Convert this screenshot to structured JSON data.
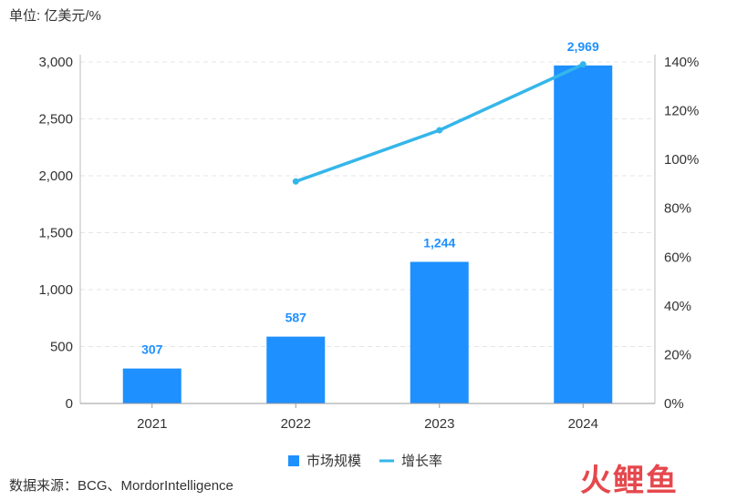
{
  "unit_label": "单位: 亿美元/%",
  "source_label": "数据来源：BCG、MordorIntelligence",
  "watermark": "火鲤鱼",
  "colors": {
    "bar": "#1e90ff",
    "line": "#35b6ea",
    "grid": "#e6e6e6",
    "label": "#1e90ff"
  },
  "chart_data": {
    "type": "bar",
    "categories": [
      "2021",
      "2022",
      "2023",
      "2024"
    ],
    "series": [
      {
        "name": "市场规模",
        "type": "bar",
        "axis": "left",
        "values": [
          307,
          587,
          1244,
          2969
        ],
        "labels": [
          "307",
          "587",
          "1,244",
          "2,969"
        ]
      },
      {
        "name": "增长率",
        "type": "line",
        "axis": "right",
        "values": [
          null,
          91,
          112,
          139
        ]
      }
    ],
    "ylim": [
      0,
      3000
    ],
    "y_ticks": [
      0,
      500,
      1000,
      1500,
      2000,
      2500,
      3000
    ],
    "y_tick_labels": [
      "0",
      "500",
      "1,000",
      "1,500",
      "2,000",
      "2,500",
      "3,000"
    ],
    "y2lim": [
      0,
      140
    ],
    "y2_ticks": [
      0,
      20,
      40,
      60,
      80,
      100,
      120,
      140
    ],
    "y2_tick_labels": [
      "0%",
      "20%",
      "40%",
      "60%",
      "80%",
      "100%",
      "120%",
      "140%"
    ],
    "grid": true,
    "legend": "bottom-center"
  }
}
